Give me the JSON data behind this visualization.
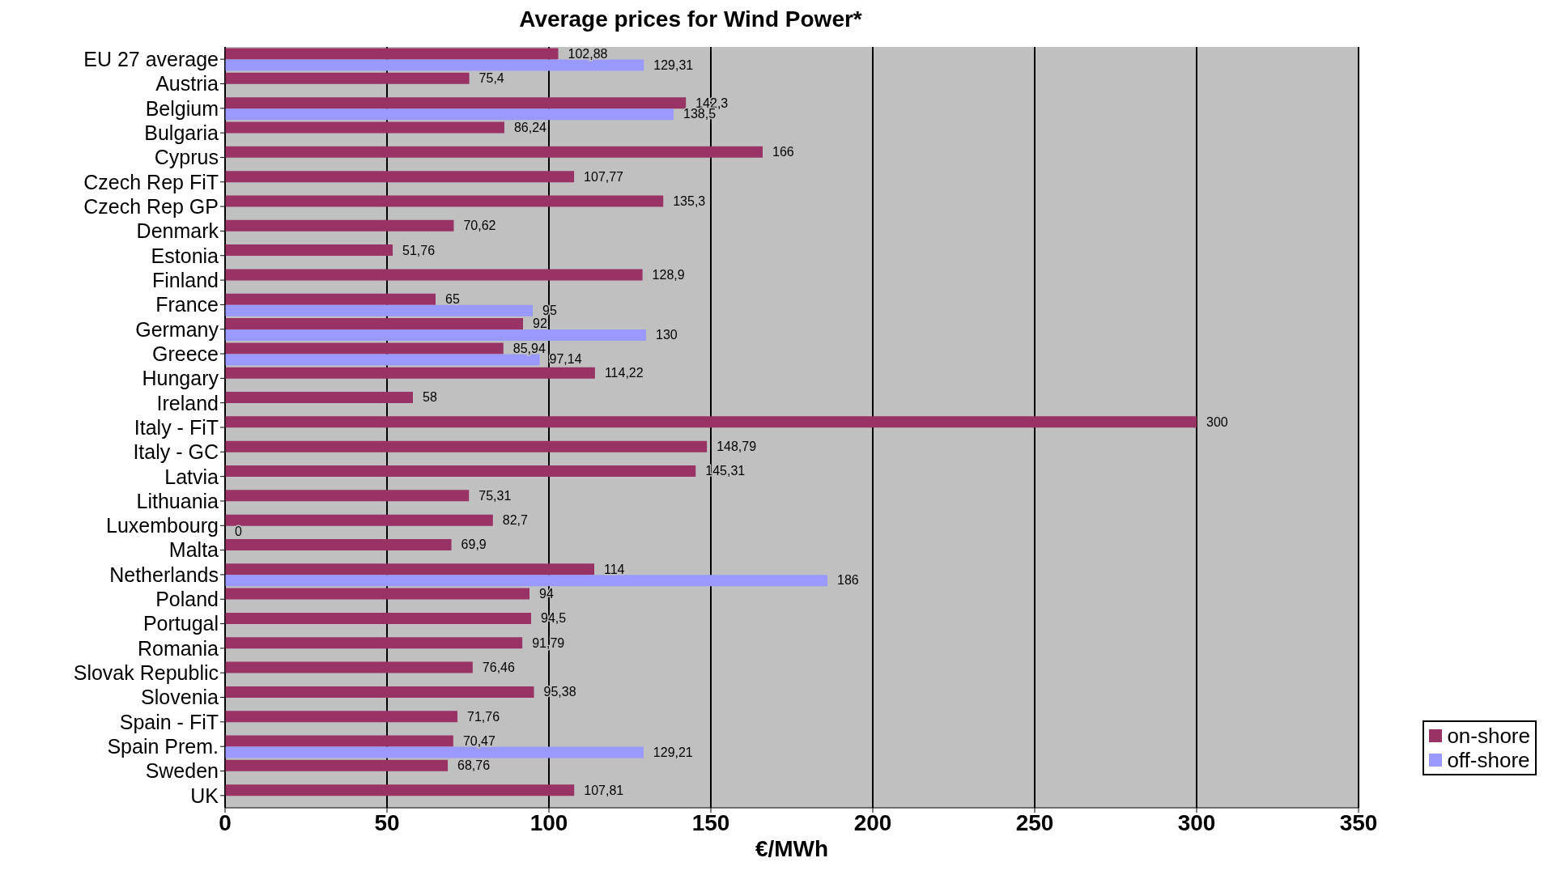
{
  "chart_data": {
    "type": "bar",
    "orientation": "horizontal",
    "title": "Average prices for Wind Power*",
    "xlabel": "€/MWh",
    "categories": [
      "EU 27 average",
      "Austria",
      "Belgium",
      "Bulgaria",
      "Cyprus",
      "Czech Rep FiT",
      "Czech Rep GP",
      "Denmark",
      "Estonia",
      "Finland",
      "France",
      "Germany",
      "Greece",
      "Hungary",
      "Ireland",
      "Italy - FiT",
      "Italy - GC",
      "Latvia",
      "Lithuania",
      "Luxembourg",
      "Malta",
      "Netherlands",
      "Poland",
      "Portugal",
      "Romania",
      "Slovak Republic",
      "Slovenia",
      "Spain - FiT",
      "Spain Prem.",
      "Sweden",
      "UK"
    ],
    "series": [
      {
        "name": "on-shore",
        "color": "#993366",
        "values": [
          102.88,
          75.4,
          142.3,
          86.24,
          166,
          107.77,
          135.3,
          70.62,
          51.76,
          128.9,
          65,
          92,
          85.94,
          114.22,
          58,
          300,
          148.79,
          145.31,
          75.31,
          82.7,
          69.9,
          114,
          94,
          94.5,
          91.79,
          76.46,
          95.38,
          71.76,
          70.47,
          68.76,
          107.81
        ],
        "value_labels": [
          "102,88",
          "75,4",
          "142,3",
          "86,24",
          "166",
          "107,77",
          "135,3",
          "70,62",
          "51,76",
          "128,9",
          "65",
          "92",
          "85,94",
          "114,22",
          "58",
          "300",
          "148,79",
          "145,31",
          "75,31",
          "82,7",
          "69,9",
          "114",
          "94",
          "94,5",
          "91,79",
          "76,46",
          "95,38",
          "71,76",
          "70,47",
          "68,76",
          "107,81"
        ]
      },
      {
        "name": "off-shore",
        "color": "#9999ff",
        "values": [
          129.31,
          null,
          138.5,
          null,
          null,
          null,
          null,
          null,
          null,
          null,
          95,
          130,
          97.14,
          null,
          null,
          null,
          null,
          null,
          null,
          0,
          null,
          186,
          null,
          null,
          null,
          null,
          null,
          null,
          129.21,
          null,
          null
        ],
        "value_labels": [
          "129,31",
          null,
          "138,5",
          null,
          null,
          null,
          null,
          null,
          null,
          null,
          "95",
          "130",
          "97,14",
          null,
          null,
          null,
          null,
          null,
          null,
          "0",
          null,
          "186",
          null,
          null,
          null,
          null,
          null,
          null,
          "129,21",
          null,
          null
        ]
      }
    ],
    "xlim": [
      0,
      350
    ],
    "xticks": [
      0,
      50,
      100,
      150,
      200,
      250,
      300,
      350
    ],
    "grid": "x",
    "legend": "bottom right"
  }
}
